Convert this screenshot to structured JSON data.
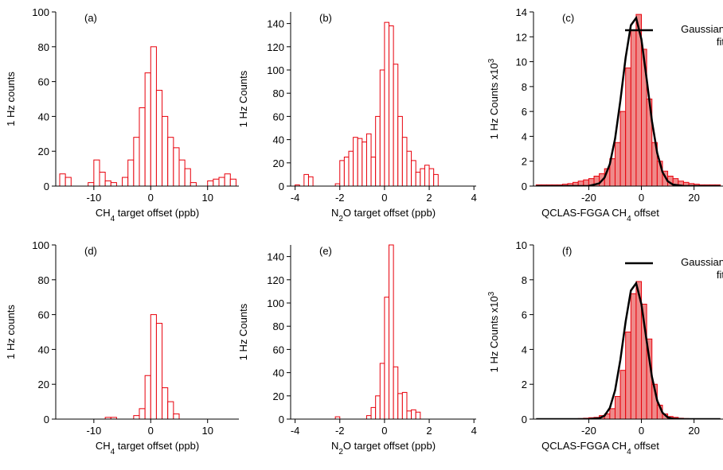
{
  "chart_data": [
    {
      "type": "histogram",
      "panel_label": "(a)",
      "ylabel": "1 Hz counts",
      "xlabel": [
        "CH",
        "4",
        " target offset (ppb)"
      ],
      "bins": [
        -16,
        -15,
        -14,
        -13,
        -12,
        -11,
        -10,
        -9,
        -8,
        -7,
        -6,
        -5,
        -4,
        -3,
        -2,
        -1,
        0,
        1,
        2,
        3,
        4,
        5,
        6,
        7,
        8,
        9,
        10,
        11,
        12,
        13,
        14,
        15
      ],
      "values": [
        7,
        5,
        0,
        0,
        0,
        2,
        15,
        8,
        3,
        2,
        0,
        5,
        15,
        28,
        45,
        65,
        80,
        55,
        40,
        28,
        22,
        15,
        10,
        2,
        0,
        0,
        3,
        4,
        5,
        7,
        4
      ],
      "color": "#e8000b",
      "fill": "#ffffff",
      "xlim": [
        -16.7,
        15.5
      ],
      "xticks": [
        -10,
        0,
        10
      ],
      "ylim": [
        0,
        100
      ],
      "yticks": [
        0,
        20,
        40,
        60,
        80,
        100
      ]
    },
    {
      "type": "histogram",
      "panel_label": "(b)",
      "ylabel": "1 Hz Counts",
      "xlabel": [
        "N",
        "2",
        "O target offset (ppb)"
      ],
      "bins": [
        -4,
        -3.8,
        -3.6,
        -3.4,
        -3.2,
        -3,
        -2.8,
        -2.6,
        -2.4,
        -2.2,
        -2,
        -1.8,
        -1.6,
        -1.4,
        -1.2,
        -1,
        -0.8,
        -0.6,
        -0.4,
        -0.2,
        0,
        0.2,
        0.4,
        0.6,
        0.8,
        1,
        1.2,
        1.4,
        1.6,
        1.8,
        2,
        2.2,
        2.4,
        2.6
      ],
      "values": [
        1,
        0,
        10,
        8,
        0,
        0,
        0,
        0,
        0,
        2,
        22,
        25,
        30,
        42,
        41,
        38,
        45,
        25,
        60,
        100,
        141,
        138,
        105,
        60,
        42,
        30,
        22,
        12,
        15,
        18,
        15,
        10,
        0
      ],
      "color": "#e8000b",
      "fill": "#ffffff",
      "xlim": [
        -4.2,
        4.1
      ],
      "xticks": [
        -4,
        -2,
        0,
        2,
        4
      ],
      "ylim": [
        0,
        150
      ],
      "yticks": [
        0,
        20,
        40,
        60,
        80,
        100,
        120,
        140
      ]
    },
    {
      "type": "histogram",
      "panel_label": "(c)",
      "ylabel": "1 Hz Counts x10",
      "ylabel_exponent": "3",
      "xlabel": [
        "QCLAS-FGGA CH",
        "4",
        " offset"
      ],
      "bins": [
        -40,
        -38,
        -36,
        -34,
        -32,
        -30,
        -28,
        -26,
        -24,
        -22,
        -20,
        -18,
        -16,
        -14,
        -12,
        -10,
        -8,
        -6,
        -4,
        -2,
        0,
        2,
        4,
        6,
        8,
        10,
        12,
        14,
        16,
        18,
        20,
        22,
        24,
        26,
        28,
        30
      ],
      "values": [
        0.1,
        0.1,
        0.1,
        0.1,
        0.1,
        0.15,
        0.2,
        0.3,
        0.4,
        0.5,
        0.6,
        0.8,
        1.0,
        1.4,
        2.2,
        3.5,
        6,
        9.5,
        12.5,
        13.8,
        11,
        7,
        3.5,
        2,
        1.2,
        0.8,
        0.6,
        0.4,
        0.3,
        0.2,
        0.15,
        0.1,
        0.1,
        0.1,
        0.1
      ],
      "color": "#e8000b",
      "fill": "#ef8a8a",
      "line": {
        "name": "Gaussian fit",
        "color": "#000000",
        "x": [
          -40,
          -30,
          -20,
          -16,
          -14,
          -12,
          -10,
          -8,
          -6,
          -4,
          -2,
          0,
          2,
          4,
          6,
          8,
          10,
          12,
          16,
          20,
          30
        ],
        "values": [
          0,
          0,
          0.01,
          0.22,
          0.68,
          1.77,
          3.81,
          6.86,
          10.31,
          12.93,
          13.52,
          11.8,
          8.6,
          5.23,
          2.66,
          1.13,
          0.39,
          0.12,
          0.01,
          0,
          0
        ]
      },
      "xlim": [
        -41,
        31
      ],
      "xticks": [
        -20,
        0,
        20
      ],
      "ylim": [
        0,
        14
      ],
      "yticks": [
        0,
        2,
        4,
        6,
        8,
        10,
        12,
        14
      ]
    },
    {
      "type": "histogram",
      "panel_label": "(d)",
      "ylabel": "1 Hz counts",
      "xlabel": [
        "CH",
        "4",
        " target offset (ppb)"
      ],
      "bins": [
        -16,
        -15,
        -14,
        -13,
        -12,
        -11,
        -10,
        -9,
        -8,
        -7,
        -6,
        -5,
        -4,
        -3,
        -2,
        -1,
        0,
        1,
        2,
        3,
        4,
        5,
        6,
        7,
        8,
        9,
        10,
        11,
        12,
        13,
        14,
        15
      ],
      "values": [
        0,
        0,
        0,
        0,
        0,
        0,
        0,
        0,
        1,
        1,
        0,
        0,
        0,
        2,
        6,
        25,
        60,
        55,
        18,
        10,
        3,
        0,
        0,
        0,
        0,
        0,
        0,
        0,
        0,
        0,
        0
      ],
      "color": "#e8000b",
      "fill": "#ffffff",
      "xlim": [
        -16.7,
        15.5
      ],
      "xticks": [
        -10,
        0,
        10
      ],
      "ylim": [
        0,
        100
      ],
      "yticks": [
        0,
        20,
        40,
        60,
        80,
        100
      ]
    },
    {
      "type": "histogram",
      "panel_label": "(e)",
      "ylabel": "1 Hz Counts",
      "xlabel": [
        "N",
        "2",
        "O target offset (ppb)"
      ],
      "bins": [
        -4,
        -3.8,
        -3.6,
        -3.4,
        -3.2,
        -3,
        -2.8,
        -2.6,
        -2.4,
        -2.2,
        -2,
        -1.8,
        -1.6,
        -1.4,
        -1.2,
        -1,
        -0.8,
        -0.6,
        -0.4,
        -0.2,
        0,
        0.2,
        0.4,
        0.6,
        0.8,
        1,
        1.2,
        1.4,
        1.6,
        1.8,
        2,
        2.2,
        2.4,
        2.6
      ],
      "values": [
        0,
        0,
        0,
        0,
        0,
        0,
        0,
        0,
        0,
        2,
        0,
        0,
        0,
        0,
        0,
        0,
        3,
        10,
        20,
        48,
        105,
        150,
        45,
        22,
        23,
        7,
        8,
        6,
        0,
        0,
        0,
        0,
        0
      ],
      "color": "#e8000b",
      "fill": "#ffffff",
      "xlim": [
        -4.2,
        4.1
      ],
      "xticks": [
        -4,
        -2,
        0,
        2,
        4
      ],
      "ylim": [
        0,
        150
      ],
      "yticks": [
        0,
        20,
        40,
        60,
        80,
        100,
        120,
        140
      ]
    },
    {
      "type": "histogram",
      "panel_label": "(f)",
      "ylabel": "1 Hz Counts x10",
      "ylabel_exponent": "3",
      "xlabel": [
        "QCLAS-FGGA CH",
        "4",
        " offset"
      ],
      "bins": [
        -40,
        -38,
        -36,
        -34,
        -32,
        -30,
        -28,
        -26,
        -24,
        -22,
        -20,
        -18,
        -16,
        -14,
        -12,
        -10,
        -8,
        -6,
        -4,
        -2,
        0,
        2,
        4,
        6,
        8,
        10,
        12,
        14,
        16,
        18,
        20,
        22,
        24,
        26,
        28,
        30
      ],
      "values": [
        0,
        0,
        0,
        0,
        0,
        0,
        0,
        0.02,
        0.03,
        0.05,
        0.08,
        0.1,
        0.2,
        0.3,
        0.6,
        1.3,
        2.8,
        5.0,
        7.2,
        7.9,
        6.6,
        4.6,
        2.0,
        0.8,
        0.3,
        0.15,
        0.1,
        0.05,
        0.03,
        0.02,
        0.02,
        0.01,
        0.01,
        0.01,
        0.01
      ],
      "color": "#e8000b",
      "fill": "#ef8a8a",
      "line": {
        "name": "Gaussian fit",
        "color": "#000000",
        "x": [
          -40,
          -30,
          -20,
          -16,
          -14,
          -12,
          -10,
          -8,
          -6,
          -4,
          -2,
          0,
          2,
          4,
          6,
          8,
          10,
          12,
          16,
          20,
          30
        ],
        "values": [
          0,
          0,
          0,
          0.05,
          0.2,
          0.64,
          1.65,
          3.4,
          5.59,
          7.38,
          7.8,
          6.6,
          4.48,
          2.43,
          1.06,
          0.37,
          0.1,
          0.02,
          0,
          0,
          0
        ]
      },
      "xlim": [
        -41,
        31
      ],
      "xticks": [
        -20,
        0,
        20
      ],
      "ylim": [
        0,
        10
      ],
      "yticks": [
        0,
        2,
        4,
        6,
        8,
        10
      ]
    }
  ]
}
